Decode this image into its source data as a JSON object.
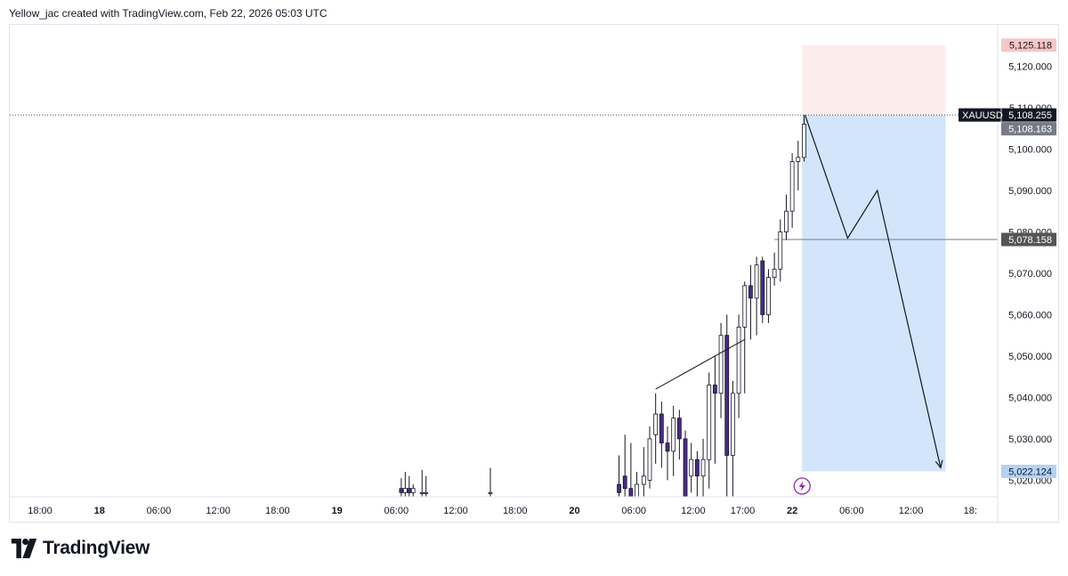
{
  "header": {
    "text": "Yellow_jac created with TradingView.com, Feb 22, 2026 05:03 UTC"
  },
  "brand": {
    "name": "TradingView",
    "logo_icon": "tradingview-logo-icon"
  },
  "colors": {
    "bull_body": "#ffffff",
    "bear_body": "#4a2a8c",
    "wick": "#131722",
    "stop_zone": "#fdecec",
    "target_zone": "#d3e5fb",
    "stop_label": "#f7c6c6",
    "target_label": "#b3d2f5",
    "price_label": "#131722",
    "level_label": "#555555",
    "bid_label": "#787b86",
    "bolt": "#9c27b0"
  },
  "chart_data": {
    "type": "candlestick",
    "symbol": "XAUUSD",
    "ylim": [
      5016,
      5130
    ],
    "y_ticks": [
      "5,020.000",
      "5,030.000",
      "5,040.000",
      "5,050.000",
      "5,060.000",
      "5,070.000",
      "5,080.000",
      "5,090.000",
      "5,100.000",
      "5,110.000",
      "5,120.000"
    ],
    "y_tick_values": [
      5020,
      5030,
      5040,
      5050,
      5060,
      5070,
      5080,
      5090,
      5100,
      5110,
      5120
    ],
    "x_ticks": [
      {
        "label": "18:00",
        "t": 0,
        "bold": false
      },
      {
        "label": "18",
        "t": 6,
        "bold": true
      },
      {
        "label": "06:00",
        "t": 12,
        "bold": false
      },
      {
        "label": "12:00",
        "t": 18,
        "bold": false
      },
      {
        "label": "18:00",
        "t": 24,
        "bold": false
      },
      {
        "label": "19",
        "t": 30,
        "bold": true
      },
      {
        "label": "06:00",
        "t": 36,
        "bold": false
      },
      {
        "label": "12:00",
        "t": 42,
        "bold": false
      },
      {
        "label": "18:00",
        "t": 48,
        "bold": false
      },
      {
        "label": "20",
        "t": 54,
        "bold": true
      },
      {
        "label": "06:00",
        "t": 60,
        "bold": false
      },
      {
        "label": "12:00",
        "t": 66,
        "bold": false
      },
      {
        "label": "17:00",
        "t": 71,
        "bold": false
      },
      {
        "label": "22",
        "t": 76,
        "bold": true
      },
      {
        "label": "06:00",
        "t": 82,
        "bold": false
      },
      {
        "label": "12:00",
        "t": 88,
        "bold": false
      },
      {
        "label": "18:",
        "t": 94,
        "bold": false
      }
    ],
    "candles": [
      {
        "t": 36.5,
        "o": 5018,
        "h": 5020.5,
        "c": 5017,
        "l": 5016
      },
      {
        "t": 36.9,
        "o": 5017,
        "h": 5022,
        "c": 5018,
        "l": 5016
      },
      {
        "t": 37.3,
        "o": 5018,
        "h": 5021,
        "c": 5017,
        "l": 5016
      },
      {
        "t": 37.7,
        "o": 5017,
        "h": 5019,
        "c": 5018,
        "l": 5016
      },
      {
        "t": 38.6,
        "o": 5017,
        "h": 5022.5,
        "c": 5017,
        "l": 5016
      },
      {
        "t": 39.0,
        "o": 5017,
        "h": 5021,
        "c": 5017,
        "l": 5016
      },
      {
        "t": 45.5,
        "o": 5017,
        "h": 5023,
        "c": 5017,
        "l": 5016
      },
      {
        "t": 58.5,
        "o": 5019,
        "h": 5026,
        "c": 5017,
        "l": 5016
      },
      {
        "t": 59.1,
        "o": 5021,
        "h": 5031,
        "c": 5018,
        "l": 5016
      },
      {
        "t": 59.7,
        "o": 5018,
        "h": 5029,
        "c": 5016,
        "l": 5016
      },
      {
        "t": 60.3,
        "o": 5016,
        "h": 5022,
        "c": 5019,
        "l": 5016
      },
      {
        "t": 61.0,
        "o": 5019,
        "h": 5028,
        "c": 5021,
        "l": 5016
      },
      {
        "t": 61.6,
        "o": 5020,
        "h": 5033,
        "c": 5030,
        "l": 5018
      },
      {
        "t": 62.2,
        "o": 5031,
        "h": 5041,
        "c": 5036,
        "l": 5024
      },
      {
        "t": 62.8,
        "o": 5036,
        "h": 5039,
        "c": 5029,
        "l": 5023
      },
      {
        "t": 63.4,
        "o": 5029,
        "h": 5033,
        "c": 5027,
        "l": 5020
      },
      {
        "t": 64.0,
        "o": 5027,
        "h": 5038,
        "c": 5035,
        "l": 5021
      },
      {
        "t": 64.6,
        "o": 5035,
        "h": 5037,
        "c": 5030,
        "l": 5025
      },
      {
        "t": 65.2,
        "o": 5030,
        "h": 5032,
        "c": 5016,
        "l": 5016
      },
      {
        "t": 65.8,
        "o": 5021,
        "h": 5029,
        "c": 5025,
        "l": 5017
      },
      {
        "t": 66.4,
        "o": 5025,
        "h": 5027,
        "c": 5021,
        "l": 5016
      },
      {
        "t": 67.0,
        "o": 5021,
        "h": 5030,
        "c": 5025,
        "l": 5016
      },
      {
        "t": 67.6,
        "o": 5025,
        "h": 5046,
        "c": 5043,
        "l": 5018
      },
      {
        "t": 68.2,
        "o": 5043,
        "h": 5050,
        "c": 5041,
        "l": 5024
      },
      {
        "t": 68.8,
        "o": 5041,
        "h": 5058,
        "c": 5055,
        "l": 5035
      },
      {
        "t": 69.4,
        "o": 5055,
        "h": 5060,
        "c": 5026,
        "l": 5016
      },
      {
        "t": 70.0,
        "o": 5026,
        "h": 5044,
        "c": 5041,
        "l": 5016
      },
      {
        "t": 70.6,
        "o": 5041,
        "h": 5060,
        "c": 5057,
        "l": 5035
      },
      {
        "t": 71.2,
        "o": 5057,
        "h": 5068,
        "c": 5067,
        "l": 5041
      },
      {
        "t": 71.8,
        "o": 5067,
        "h": 5072,
        "c": 5064,
        "l": 5054
      },
      {
        "t": 72.4,
        "o": 5064,
        "h": 5074,
        "c": 5072,
        "l": 5055
      },
      {
        "t": 73.0,
        "o": 5073,
        "h": 5074,
        "c": 5060,
        "l": 5058
      },
      {
        "t": 73.6,
        "o": 5060,
        "h": 5071,
        "c": 5069,
        "l": 5058
      },
      {
        "t": 74.2,
        "o": 5069,
        "h": 5075,
        "c": 5071,
        "l": 5067
      },
      {
        "t": 74.8,
        "o": 5071,
        "h": 5083,
        "c": 5080,
        "l": 5068
      },
      {
        "t": 75.4,
        "o": 5080,
        "h": 5089,
        "c": 5085,
        "l": 5078
      },
      {
        "t": 76.0,
        "o": 5085,
        "h": 5099,
        "c": 5097,
        "l": 5081
      },
      {
        "t": 76.6,
        "o": 5097,
        "h": 5102,
        "c": 5098,
        "l": 5090
      },
      {
        "t": 77.2,
        "o": 5098,
        "h": 5108.2,
        "c": 5106,
        "l": 5097
      }
    ],
    "trend_line": [
      {
        "t": 62.2,
        "y": 5042
      },
      {
        "t": 71.2,
        "y": 5054
      }
    ],
    "projection_path": [
      {
        "t": 77.3,
        "y": 5108.2
      },
      {
        "t": 81.6,
        "y": 5078.5
      },
      {
        "t": 84.6,
        "y": 5090
      },
      {
        "t": 91.0,
        "y": 5023
      }
    ],
    "position": {
      "type": "short",
      "entry": 5108.255,
      "stop": 5125.118,
      "target": 5022.124,
      "t_start": 77.0,
      "t_end": 91.5
    },
    "level_line": {
      "t_start": 74.2,
      "y": 5078.158
    },
    "price_labels": {
      "stop": "5,125.118",
      "current": "5,108.255",
      "bid": "5,108.163",
      "level": "5,078.158",
      "target": "5,022.124"
    },
    "price_values": {
      "stop": 5125.118,
      "current": 5108.255,
      "bid": 5108.163,
      "level": 5078.158,
      "target": 5022.124
    },
    "event_marker": {
      "t": 77.0,
      "icon": "lightning-bolt-icon"
    }
  }
}
